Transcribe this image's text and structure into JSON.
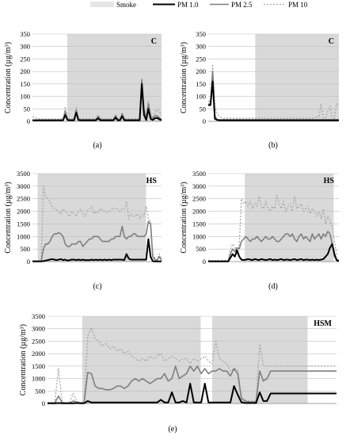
{
  "legend": {
    "placement": "top",
    "items": [
      {
        "label": "Smoke",
        "color": "#e6e6e6",
        "kind": "area"
      },
      {
        "label": "PM 1.0",
        "color": "#000000",
        "kind": "solid"
      },
      {
        "label": "PM 2.5",
        "color": "#7f7f7f",
        "kind": "solid"
      },
      {
        "label": "PM 10",
        "color": "#a6a6a6",
        "kind": "dotted"
      }
    ]
  },
  "chart_data": [
    {
      "type": "line",
      "caption": "(a)",
      "label": "C",
      "ylabel": "Concentration (µg/m³)",
      "yticks": [
        "0",
        "50",
        "100",
        "150",
        "200",
        "250",
        "300",
        "350"
      ],
      "ylim": [
        0,
        350
      ],
      "x_count": 60,
      "smoke": [
        [
          0.27,
          1.0
        ]
      ],
      "series": [
        {
          "name": "PM 1.0",
          "values": [
            4,
            4,
            4,
            4,
            4,
            4,
            4,
            4,
            4,
            4,
            4,
            4,
            4,
            4,
            4,
            25,
            5,
            4,
            4,
            4,
            35,
            5,
            4,
            4,
            4,
            4,
            4,
            4,
            4,
            4,
            12,
            4,
            4,
            4,
            4,
            4,
            4,
            4,
            15,
            4,
            4,
            20,
            4,
            4,
            4,
            4,
            4,
            4,
            4,
            4,
            150,
            25,
            5,
            50,
            10,
            5,
            12,
            14,
            8,
            4
          ]
        },
        {
          "name": "PM 2.5",
          "values": [
            5,
            5,
            5,
            5,
            5,
            5,
            5,
            5,
            5,
            5,
            5,
            5,
            5,
            5,
            5,
            40,
            8,
            6,
            6,
            6,
            45,
            8,
            6,
            6,
            6,
            6,
            6,
            6,
            6,
            6,
            20,
            8,
            6,
            6,
            6,
            6,
            6,
            6,
            22,
            8,
            6,
            30,
            8,
            6,
            6,
            6,
            6,
            6,
            6,
            6,
            165,
            45,
            12,
            70,
            20,
            10,
            22,
            22,
            15,
            6
          ]
        },
        {
          "name": "PM 10",
          "values": [
            18,
            14,
            12,
            10,
            10,
            10,
            10,
            9,
            9,
            9,
            9,
            9,
            9,
            10,
            10,
            55,
            15,
            10,
            10,
            10,
            55,
            15,
            10,
            10,
            10,
            10,
            10,
            10,
            10,
            10,
            25,
            12,
            10,
            10,
            10,
            10,
            10,
            10,
            28,
            12,
            10,
            35,
            12,
            10,
            10,
            10,
            10,
            10,
            10,
            10,
            175,
            55,
            18,
            80,
            30,
            18,
            35,
            48,
            40,
            25
          ]
        }
      ]
    },
    {
      "type": "line",
      "caption": "(b)",
      "label": "C",
      "ylabel": "Concentration (µg/m³)",
      "yticks": [
        "0",
        "50",
        "100",
        "150",
        "200",
        "250",
        "300",
        "350"
      ],
      "ylim": [
        0,
        350
      ],
      "x_count": 60,
      "smoke": [
        [
          0.36,
          1.0
        ]
      ],
      "series": [
        {
          "name": "PM 1.0",
          "values": [
            65,
            65,
            160,
            10,
            5,
            4,
            4,
            4,
            4,
            4,
            4,
            4,
            4,
            4,
            4,
            4,
            4,
            4,
            4,
            4,
            4,
            4,
            4,
            4,
            4,
            4,
            4,
            4,
            4,
            4,
            4,
            4,
            4,
            4,
            4,
            4,
            4,
            4,
            4,
            4,
            4,
            4,
            4,
            4,
            4,
            4,
            4,
            4,
            4,
            4,
            4,
            4,
            4,
            4,
            4,
            4,
            4,
            4,
            4,
            4
          ]
        },
        {
          "name": "PM 2.5",
          "values": [
            70,
            70,
            200,
            20,
            8,
            6,
            6,
            6,
            6,
            6,
            6,
            6,
            6,
            6,
            6,
            6,
            6,
            6,
            6,
            6,
            6,
            6,
            6,
            6,
            6,
            6,
            6,
            6,
            6,
            6,
            6,
            6,
            6,
            6,
            6,
            6,
            6,
            6,
            6,
            6,
            6,
            6,
            6,
            6,
            6,
            6,
            6,
            6,
            6,
            6,
            6,
            6,
            6,
            6,
            6,
            6,
            6,
            6,
            6,
            6
          ]
        },
        {
          "name": "PM 10",
          "values": [
            80,
            80,
            225,
            60,
            30,
            20,
            15,
            12,
            12,
            12,
            12,
            12,
            12,
            12,
            12,
            12,
            12,
            12,
            12,
            12,
            12,
            12,
            12,
            12,
            12,
            12,
            12,
            12,
            12,
            12,
            12,
            12,
            12,
            12,
            12,
            12,
            12,
            12,
            12,
            12,
            12,
            12,
            12,
            12,
            12,
            12,
            12,
            12,
            12,
            20,
            15,
            70,
            15,
            12,
            40,
            60,
            15,
            12,
            70,
            60
          ]
        }
      ]
    },
    {
      "type": "line",
      "caption": "(c)",
      "label": "HS",
      "ylabel": "Concentration (µg/m³)",
      "yticks": [
        "0",
        "500",
        "1000",
        "1500",
        "2000",
        "2500",
        "3000",
        "3500"
      ],
      "ylim": [
        0,
        3500
      ],
      "x_count": 60,
      "smoke": [
        [
          0.04,
          0.88
        ]
      ],
      "series": [
        {
          "name": "PM 1.0",
          "values": [
            10,
            10,
            10,
            10,
            10,
            20,
            40,
            60,
            80,
            100,
            80,
            60,
            80,
            100,
            60,
            80,
            40,
            60,
            80,
            80,
            60,
            80,
            60,
            80,
            60,
            60,
            60,
            80,
            60,
            80,
            60,
            80,
            60,
            80,
            60,
            80,
            60,
            80,
            80,
            80,
            80,
            80,
            60,
            300,
            120,
            80,
            80,
            80,
            80,
            80,
            80,
            80,
            80,
            900,
            200,
            20,
            10,
            10,
            10,
            10
          ]
        },
        {
          "name": "PM 2.5",
          "values": [
            20,
            20,
            20,
            20,
            20,
            500,
            700,
            700,
            800,
            1000,
            1100,
            1100,
            1150,
            1100,
            1000,
            700,
            600,
            600,
            700,
            700,
            700,
            800,
            800,
            600,
            700,
            800,
            900,
            900,
            1000,
            1000,
            1000,
            900,
            800,
            800,
            800,
            800,
            900,
            900,
            1000,
            1000,
            1000,
            1400,
            1000,
            900,
            1000,
            1000,
            1100,
            1100,
            1000,
            1000,
            1000,
            1000,
            1100,
            1600,
            1500,
            200,
            80,
            50,
            200,
            50
          ]
        },
        {
          "name": "PM 10",
          "values": [
            30,
            30,
            30,
            30,
            30,
            3000,
            2600,
            2500,
            2400,
            2200,
            2100,
            2050,
            2000,
            1900,
            2100,
            2000,
            1900,
            1800,
            2000,
            1900,
            1800,
            2000,
            2100,
            1900,
            1800,
            2000,
            2100,
            2200,
            1900,
            2000,
            1950,
            2100,
            2050,
            2000,
            1950,
            2000,
            2050,
            2150,
            2100,
            2100,
            2000,
            2100,
            2100,
            2400,
            1700,
            1900,
            1800,
            1800,
            1900,
            1700,
            1900,
            1800,
            2200,
            1700,
            1600,
            300,
            150,
            80,
            300,
            100
          ]
        }
      ]
    },
    {
      "type": "line",
      "caption": "(d)",
      "label": "HS",
      "ylabel": "Concentration (µg/m³)",
      "yticks": [
        "0",
        "500",
        "1000",
        "1500",
        "2000",
        "2500",
        "3000",
        "3500"
      ],
      "ylim": [
        0,
        3500
      ],
      "x_count": 60,
      "smoke": [
        [
          0.28,
          0.96
        ]
      ],
      "series": [
        {
          "name": "PM 1.0",
          "values": [
            10,
            10,
            10,
            10,
            10,
            10,
            10,
            10,
            10,
            10,
            150,
            300,
            200,
            450,
            200,
            80,
            60,
            80,
            100,
            80,
            60,
            100,
            80,
            60,
            100,
            80,
            60,
            80,
            100,
            60,
            80,
            60,
            80,
            100,
            60,
            80,
            80,
            60,
            80,
            100,
            60,
            80,
            100,
            60,
            80,
            80,
            60,
            80,
            60,
            80,
            60,
            80,
            100,
            200,
            300,
            550,
            700,
            300,
            50,
            20
          ]
        },
        {
          "name": "PM 2.5",
          "values": [
            20,
            20,
            20,
            20,
            20,
            20,
            20,
            20,
            20,
            20,
            300,
            500,
            400,
            550,
            500,
            800,
            900,
            1000,
            900,
            800,
            900,
            900,
            1000,
            900,
            800,
            900,
            1000,
            900,
            900,
            1000,
            900,
            800,
            800,
            900,
            1000,
            1100,
            1100,
            1000,
            1100,
            900,
            800,
            1000,
            1100,
            900,
            1000,
            900,
            800,
            1100,
            900,
            1000,
            1100,
            900,
            1100,
            1000,
            1200,
            1100,
            700,
            200,
            100,
            50
          ]
        },
        {
          "name": "PM 10",
          "values": [
            50,
            50,
            40,
            40,
            40,
            40,
            40,
            40,
            40,
            40,
            500,
            700,
            600,
            300,
            650,
            2500,
            2300,
            2400,
            2200,
            2400,
            2100,
            2300,
            2200,
            2600,
            2200,
            2100,
            2400,
            2100,
            2000,
            2200,
            2100,
            2650,
            2300,
            2100,
            2400,
            2000,
            2200,
            2300,
            2000,
            2600,
            2100,
            2200,
            2300,
            2000,
            2100,
            2200,
            1900,
            2100,
            2000,
            1800,
            2000,
            1700,
            2100,
            1500,
            1800,
            1600,
            1400,
            800,
            300,
            300
          ]
        }
      ]
    },
    {
      "type": "line",
      "caption": "(e)",
      "label": "HSM",
      "ylabel": "Concentration (µg/m³)",
      "yticks": [
        "0",
        "500",
        "1000",
        "1500",
        "2000",
        "2500",
        "3000",
        "3500"
      ],
      "ylim": [
        0,
        3500
      ],
      "x_count": 80,
      "smoke": [
        [
          0.12,
          0.53
        ],
        [
          0.57,
          0.9
        ]
      ],
      "series": [
        {
          "name": "PM 1.0",
          "values": [
            10,
            10,
            10,
            20,
            10,
            10,
            10,
            10,
            20,
            10,
            10,
            100,
            40,
            40,
            40,
            40,
            40,
            40,
            40,
            40,
            40,
            40,
            40,
            40,
            40,
            40,
            40,
            40,
            40,
            40,
            40,
            150,
            40,
            40,
            450,
            40,
            40,
            100,
            40,
            800,
            40,
            40,
            40,
            800,
            40,
            40,
            40,
            40,
            40,
            40,
            40,
            700,
            350,
            50,
            20,
            20,
            20,
            20,
            450,
            100,
            100,
            400,
            400,
            400,
            400,
            400,
            400,
            400,
            400,
            400,
            400,
            400,
            400,
            400,
            400,
            400,
            400,
            400,
            400,
            400
          ]
        },
        {
          "name": "PM 2.5",
          "values": [
            20,
            20,
            20,
            300,
            30,
            20,
            20,
            100,
            50,
            20,
            30,
            1250,
            1200,
            700,
            600,
            600,
            550,
            550,
            600,
            700,
            700,
            600,
            700,
            900,
            1000,
            900,
            1000,
            900,
            800,
            900,
            1000,
            1000,
            1200,
            900,
            1000,
            1500,
            1000,
            1100,
            1200,
            1500,
            1300,
            1500,
            1200,
            1400,
            1200,
            1300,
            1300,
            1400,
            1300,
            1300,
            1100,
            1400,
            1200,
            200,
            100,
            60,
            60,
            60,
            1300,
            900,
            1000,
            1300,
            1300,
            1300,
            1300,
            1300,
            1300,
            1300,
            1300,
            1300,
            1300,
            1300,
            1300,
            1300,
            1300,
            1300,
            1300,
            1300,
            1300,
            1300
          ]
        },
        {
          "name": "PM 10",
          "values": [
            40,
            40,
            40,
            1400,
            50,
            40,
            40,
            400,
            100,
            40,
            80,
            2700,
            3050,
            2600,
            2500,
            2300,
            2400,
            2200,
            2300,
            2100,
            2200,
            2000,
            2100,
            1900,
            1800,
            1700,
            1800,
            1700,
            1900,
            1800,
            1900,
            2000,
            1700,
            1800,
            1900,
            1800,
            1700,
            1800,
            1800,
            1600,
            1800,
            1700,
            1800,
            1900,
            1700,
            1600,
            2500,
            1800,
            1700,
            1600,
            1300,
            1400,
            1350,
            250,
            150,
            100,
            100,
            100,
            2400,
            1500,
            1500,
            1500,
            1500,
            1500,
            1500,
            1500,
            1500,
            1500,
            1500,
            1500,
            1500,
            1500,
            1500,
            1500,
            1500,
            1500,
            1500,
            1500,
            1500,
            1500
          ]
        }
      ]
    }
  ]
}
